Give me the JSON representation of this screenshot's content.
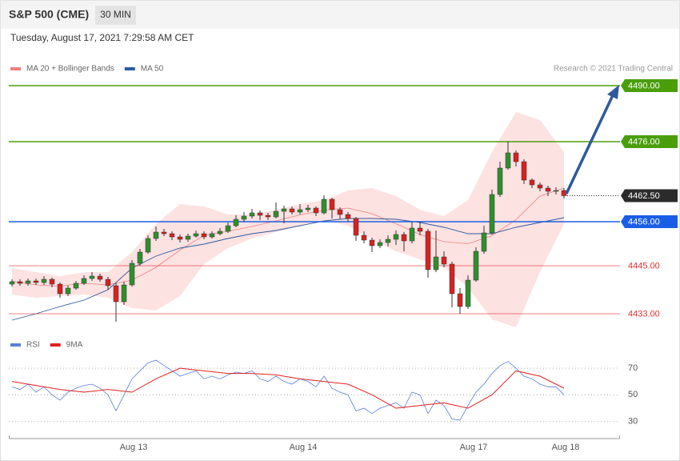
{
  "header": {
    "title": "S&P 500 (CME)",
    "interval": "30 MIN",
    "timestamp": "Tuesday, August 17, 2021 7:29:58 AM CET"
  },
  "chart_data": [
    {
      "type": "candlestick",
      "source": "Research © 2021 Trading Central",
      "up_color": "#2f8f2f",
      "down_color": "#d42222",
      "ylim": [
        4427,
        4492
      ],
      "xlim": [
        -0.4,
        76
      ],
      "xticks": [
        {
          "value": 15.2,
          "label": "Aug 13"
        },
        {
          "value": 36.4,
          "label": "Aug 14"
        },
        {
          "value": 57.7,
          "label": "Aug 17"
        },
        {
          "value": 69.2,
          "label": "Aug 18"
        }
      ],
      "levels": [
        {
          "value": 4490,
          "label": "4490.00",
          "color": "#4a9e0a",
          "boxed": true
        },
        {
          "value": 4476,
          "label": "4476.00",
          "color": "#4a9e0a",
          "boxed": true
        },
        {
          "value": 4456,
          "label": "4456.00",
          "color": "#1a5ee8",
          "boxed": true
        },
        {
          "value": 4445,
          "label": "4445.00",
          "color": "#e03030",
          "boxed": false
        },
        {
          "value": 4433,
          "label": "4433.00",
          "color": "#e03030",
          "boxed": false
        }
      ],
      "last_price": {
        "value": 4462.5,
        "label": "4462.50",
        "color": "#2b2b2b"
      },
      "open": [
        4440.4,
        4441.0,
        4440.6,
        4441.2,
        4440.8,
        4441.6,
        4440.4,
        4438.0,
        4439.4,
        4440.6,
        4441.8,
        4442.4,
        4441.6,
        4440.0,
        4436.0,
        4440.2,
        4445.6,
        4448.4,
        4451.8,
        4453.4,
        4453.0,
        4452.2,
        4451.6,
        4452.4,
        4453.0,
        4452.2,
        4453.0,
        4453.6,
        4455.0,
        4456.6,
        4457.4,
        4458.2,
        4457.6,
        4457.2,
        4458.6,
        4459.2,
        4458.4,
        4459.0,
        4459.4,
        4458.2,
        4461.6,
        4459.0,
        4457.8,
        4456.8,
        4452.6,
        4451.4,
        4450.0,
        4450.8,
        4451.6,
        4452.8,
        4451.2,
        4454.4,
        4453.6,
        4444.0,
        4447.2,
        4445.4,
        4438.0,
        4434.8,
        4441.4,
        4448.6,
        4453.2,
        4462.8,
        4469.4,
        4473.2,
        4471.0,
        4466.4,
        4465.2,
        4464.4,
        4463.6,
        4463.8
      ],
      "high": [
        4441.6,
        4441.6,
        4441.8,
        4441.8,
        4442.4,
        4442.0,
        4440.8,
        4440.0,
        4441.2,
        4442.6,
        4443.4,
        4443.0,
        4442.2,
        4440.6,
        4441.0,
        4446.4,
        4449.2,
        4452.6,
        4454.8,
        4454.2,
        4453.6,
        4452.8,
        4453.0,
        4453.8,
        4453.6,
        4453.6,
        4454.4,
        4455.8,
        4457.6,
        4458.4,
        4459.2,
        4458.8,
        4458.2,
        4460.8,
        4460.0,
        4459.8,
        4460.4,
        4460.2,
        4459.8,
        4462.6,
        4462.0,
        4459.6,
        4458.4,
        4457.2,
        4453.6,
        4452.0,
        4451.6,
        4452.6,
        4453.8,
        4453.4,
        4456.0,
        4456.0,
        4454.2,
        4453.8,
        4448.6,
        4446.0,
        4439.4,
        4442.6,
        4449.6,
        4455.0,
        4464.0,
        4471.0,
        4476.0,
        4473.8,
        4471.6,
        4466.8,
        4465.8,
        4465.0,
        4464.6,
        4464.4
      ],
      "low": [
        4439.8,
        4440.0,
        4440.0,
        4440.2,
        4440.2,
        4439.6,
        4437.0,
        4437.4,
        4439.0,
        4440.2,
        4441.2,
        4441.0,
        4439.0,
        4431.0,
        4435.2,
        4439.8,
        4445.0,
        4448.0,
        4451.2,
        4452.4,
        4451.4,
        4450.8,
        4451.0,
        4452.0,
        4451.6,
        4451.8,
        4452.6,
        4453.2,
        4454.6,
        4456.0,
        4456.8,
        4456.4,
        4456.4,
        4456.8,
        4455.6,
        4457.8,
        4457.8,
        4458.4,
        4457.4,
        4457.8,
        4456.8,
        4456.6,
        4456.0,
        4451.2,
        4450.6,
        4448.4,
        4449.4,
        4449.8,
        4450.2,
        4448.6,
        4450.6,
        4452.6,
        4442.0,
        4443.4,
        4444.6,
        4434.6,
        4433.0,
        4434.2,
        4441.0,
        4448.0,
        4452.8,
        4462.2,
        4469.0,
        4469.8,
        4465.4,
        4464.4,
        4463.6,
        4462.4,
        4462.8,
        4461.8
      ],
      "close": [
        4441.0,
        4440.6,
        4441.2,
        4440.8,
        4441.6,
        4440.4,
        4438.0,
        4439.4,
        4440.6,
        4441.8,
        4442.4,
        4441.6,
        4440.0,
        4436.0,
        4440.2,
        4445.6,
        4448.4,
        4451.8,
        4453.4,
        4453.0,
        4452.2,
        4451.6,
        4452.4,
        4453.0,
        4452.2,
        4453.0,
        4453.6,
        4455.0,
        4456.6,
        4457.4,
        4458.2,
        4457.6,
        4457.2,
        4458.6,
        4459.2,
        4458.4,
        4459.0,
        4459.4,
        4458.2,
        4461.6,
        4459.0,
        4457.8,
        4456.8,
        4452.6,
        4451.4,
        4450.0,
        4450.8,
        4451.6,
        4452.8,
        4451.2,
        4454.4,
        4453.6,
        4444.0,
        4447.2,
        4445.4,
        4438.0,
        4434.8,
        4441.4,
        4448.6,
        4453.2,
        4462.8,
        4469.4,
        4473.2,
        4471.0,
        4466.4,
        4465.2,
        4464.4,
        4463.6,
        4463.8,
        4462.5
      ],
      "bands": {
        "name": "MA 20 + Bollinger Bands",
        "color": "#f08080",
        "fill": "#fde2e2",
        "x": [
          0,
          3,
          6,
          9,
          12,
          15,
          18,
          21,
          24,
          27,
          30,
          33,
          36,
          39,
          42,
          45,
          48,
          51,
          54,
          57,
          60,
          63,
          66,
          69
        ],
        "upper": [
          4444.4,
          4443.4,
          4442.4,
          4443.4,
          4443.4,
          4448.4,
          4455.4,
          4460.4,
          4459.8,
          4457.8,
          4457.8,
          4459.0,
          4460.4,
          4461.4,
          4463.8,
          4464.4,
          4462.4,
          4459.0,
          4457.4,
          4461.4,
          4473.4,
          4483.4,
          4481.4,
          4473.4
        ],
        "lower": [
          4437.8,
          4437.0,
          4437.4,
          4437.8,
          4437.0,
          4434.4,
          4433.8,
          4437.4,
          4445.4,
          4449.4,
          4451.8,
          4453.4,
          4455.0,
          4456.4,
          4455.0,
          4451.6,
          4448.6,
          4446.6,
          4444.6,
          4439.6,
          4431.6,
          4429.6,
          4443.4,
          4455.4
        ],
        "values": [
          4441.1,
          4440.2,
          4439.9,
          4440.6,
          4440.2,
          4441.4,
          4444.6,
          4448.9,
          4452.6,
          4453.6,
          4454.8,
          4456.2,
          4457.7,
          4458.9,
          4459.4,
          4458.0,
          4455.5,
          4452.8,
          4451.0,
          4450.5,
          4452.5,
          4456.5,
          4462.4,
          4464.4
        ]
      },
      "ma50": {
        "name": "MA 50",
        "color": "#2e5a9c",
        "x": [
          0,
          3,
          6,
          9,
          12,
          15,
          18,
          21,
          24,
          27,
          30,
          33,
          36,
          39,
          42,
          45,
          48,
          51,
          54,
          57,
          60,
          63,
          66,
          69
        ],
        "values": [
          4431.4,
          4433.0,
          4434.8,
          4436.4,
          4439.0,
          4444.4,
          4447.4,
          4449.4,
          4450.4,
          4451.8,
          4453.0,
          4453.8,
          4455.0,
          4456.2,
          4456.8,
          4456.8,
          4456.6,
          4455.8,
          4454.6,
          4453.0,
          4453.0,
          4454.6,
          4455.8,
          4457.0
        ]
      }
    },
    {
      "type": "line",
      "ylim": [
        22,
        79
      ],
      "xlim": [
        -0.4,
        76
      ],
      "yticks": [
        30,
        50,
        70
      ],
      "x": [
        0,
        1,
        2,
        3,
        4,
        5,
        6,
        7,
        8,
        9,
        10,
        11,
        12,
        13,
        14,
        15,
        16,
        17,
        18,
        19,
        20,
        21,
        22,
        23,
        24,
        25,
        26,
        27,
        28,
        29,
        30,
        31,
        32,
        33,
        34,
        35,
        36,
        37,
        38,
        39,
        40,
        41,
        42,
        43,
        44,
        45,
        46,
        47,
        48,
        49,
        50,
        51,
        52,
        53,
        54,
        55,
        56,
        57,
        58,
        59,
        60,
        61,
        62,
        63,
        64,
        65,
        66,
        67,
        68,
        69
      ],
      "series": [
        {
          "name": "RSI",
          "color": "#5b7fdb",
          "values": [
            56,
            54,
            58,
            52,
            56,
            50,
            46,
            52,
            55,
            57,
            58,
            55,
            50,
            38,
            50,
            62,
            68,
            74,
            76,
            72,
            68,
            64,
            66,
            68,
            62,
            64,
            62,
            65,
            67,
            66,
            68,
            62,
            60,
            64,
            60,
            58,
            62,
            60,
            56,
            64,
            55,
            52,
            50,
            38,
            40,
            36,
            40,
            42,
            44,
            40,
            52,
            50,
            36,
            46,
            42,
            32,
            31,
            42,
            52,
            58,
            66,
            72,
            75,
            70,
            64,
            62,
            58,
            56,
            56,
            50
          ]
        },
        {
          "name": "9MA",
          "color": "#e02020",
          "x": [
            0,
            3,
            6,
            9,
            12,
            15,
            18,
            21,
            24,
            27,
            30,
            33,
            36,
            39,
            42,
            45,
            48,
            51,
            54,
            57,
            60,
            63,
            66,
            69
          ],
          "values": [
            60,
            57,
            54,
            52,
            54,
            52,
            62,
            70,
            68,
            66,
            66,
            65,
            62,
            60,
            58,
            50,
            40,
            42,
            44,
            40,
            50,
            68,
            64,
            55
          ]
        }
      ]
    }
  ]
}
